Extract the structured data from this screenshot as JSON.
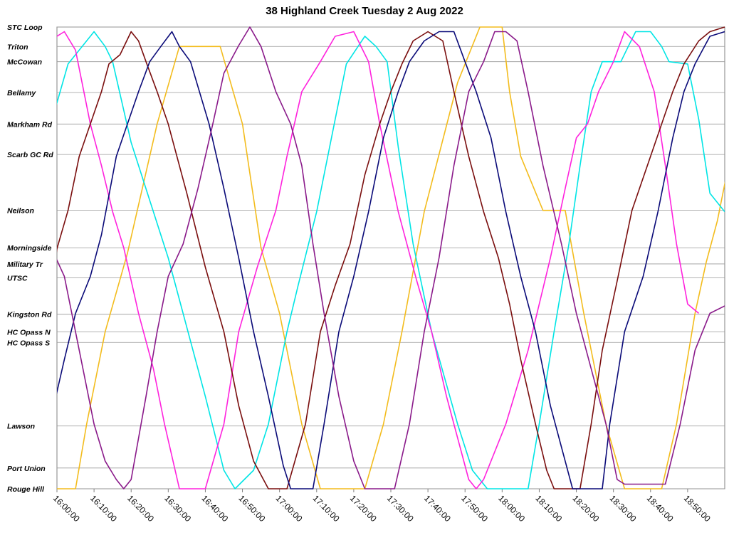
{
  "chart_data": {
    "type": "line",
    "title": "38 Highland Creek Tuesday 2 Aug 2022",
    "xlabel": "",
    "ylabel": "",
    "x_range": [
      "16:00:00",
      "19:00:00"
    ],
    "x_ticks": [
      "16:00:00",
      "16:10:00",
      "16:20:00",
      "16:30:00",
      "16:40:00",
      "16:50:00",
      "17:00:00",
      "17:10:00",
      "17:20:00",
      "17:30:00",
      "17:40:00",
      "17:50:00",
      "18:00:00",
      "18:10:00",
      "18:20:00",
      "18:30:00",
      "18:40:00",
      "18:50:00"
    ],
    "stops": [
      {
        "name": "STC Loop",
        "pos": 0
      },
      {
        "name": "Triton",
        "pos": 4.2
      },
      {
        "name": "McCowan",
        "pos": 7.5
      },
      {
        "name": "Bellamy",
        "pos": 14.2
      },
      {
        "name": "Markham Rd",
        "pos": 21.0
      },
      {
        "name": "Scarb GC Rd",
        "pos": 27.6
      },
      {
        "name": "Neilson",
        "pos": 39.7
      },
      {
        "name": "Morningside",
        "pos": 47.8
      },
      {
        "name": "Military Tr",
        "pos": 51.3
      },
      {
        "name": "UTSC",
        "pos": 54.3
      },
      {
        "name": "Kingston Rd",
        "pos": 62.2
      },
      {
        "name": "HC Opass N",
        "pos": 66.0
      },
      {
        "name": "HC Opass S",
        "pos": 68.3
      },
      {
        "name": "Lawson",
        "pos": 86.4
      },
      {
        "name": "Port Union",
        "pos": 95.5
      },
      {
        "name": "Rouge Hill",
        "pos": 100
      }
    ],
    "grid": true,
    "legend": "none",
    "series": [
      {
        "color": "#f3bc1d",
        "points": [
          [
            "15:58:00",
            100
          ],
          [
            "16:05:00",
            100
          ],
          [
            "16:08:00",
            86
          ],
          [
            "16:13:00",
            66
          ],
          [
            "16:19:00",
            49
          ],
          [
            "16:27:00",
            21
          ],
          [
            "16:33:00",
            4.2
          ],
          [
            "16:44:00",
            4.2
          ],
          [
            "16:50:00",
            21
          ],
          [
            "16:55:00",
            47.8
          ],
          [
            "17:00:00",
            62
          ],
          [
            "17:06:00",
            86
          ],
          [
            "17:11:00",
            100
          ],
          [
            "17:23:00",
            100
          ],
          [
            "17:28:00",
            86
          ],
          [
            "17:33:00",
            66
          ],
          [
            "17:39:00",
            40
          ],
          [
            "17:48:00",
            12
          ],
          [
            "17:54:00",
            0
          ],
          [
            "18:00:00",
            0
          ],
          [
            "18:02:00",
            14
          ],
          [
            "18:05:00",
            28
          ],
          [
            "18:11:00",
            39.7
          ],
          [
            "18:17:00",
            39.7
          ],
          [
            "18:22:00",
            62
          ],
          [
            "18:28:00",
            86
          ],
          [
            "18:33:00",
            100
          ],
          [
            "18:43:00",
            100
          ],
          [
            "18:47:00",
            86
          ],
          [
            "18:52:00",
            62
          ],
          [
            "18:55:00",
            51
          ],
          [
            "18:58:00",
            42
          ],
          [
            "19:01:00",
            30
          ]
        ]
      },
      {
        "color": "#00e5e5",
        "points": [
          [
            "15:58:00",
            22
          ],
          [
            "16:03:00",
            8
          ],
          [
            "16:10:00",
            1
          ],
          [
            "16:13:00",
            4.2
          ],
          [
            "16:15:00",
            7.5
          ],
          [
            "16:20:00",
            25
          ],
          [
            "16:30:00",
            50
          ],
          [
            "16:40:00",
            80
          ],
          [
            "16:45:00",
            96
          ],
          [
            "16:48:00",
            100
          ],
          [
            "16:53:00",
            96
          ],
          [
            "16:57:00",
            86
          ],
          [
            "17:02:00",
            66
          ],
          [
            "17:05:00",
            56
          ],
          [
            "17:10:00",
            40
          ],
          [
            "17:15:00",
            20
          ],
          [
            "17:18:00",
            8
          ],
          [
            "17:23:00",
            2
          ],
          [
            "17:26:00",
            4.2
          ],
          [
            "17:29:00",
            7.5
          ],
          [
            "17:32:00",
            26
          ],
          [
            "17:36:00",
            47
          ],
          [
            "17:41:00",
            66
          ],
          [
            "17:48:00",
            86
          ],
          [
            "17:52:00",
            96
          ],
          [
            "17:56:00",
            100
          ],
          [
            "18:07:00",
            100
          ],
          [
            "18:10:00",
            86
          ],
          [
            "18:14:00",
            66
          ],
          [
            "18:18:00",
            47
          ],
          [
            "18:21:00",
            30
          ],
          [
            "18:24:00",
            14
          ],
          [
            "18:27:00",
            7.5
          ],
          [
            "18:32:00",
            7.5
          ],
          [
            "18:34:00",
            4.2
          ],
          [
            "18:36:00",
            1
          ],
          [
            "18:40:00",
            1
          ],
          [
            "18:43:00",
            4.2
          ],
          [
            "18:45:00",
            7.5
          ],
          [
            "18:50:00",
            8
          ],
          [
            "18:53:00",
            20
          ],
          [
            "18:56:00",
            36
          ],
          [
            "19:00:00",
            40
          ]
        ]
      },
      {
        "color": "#ff22dd",
        "points": [
          [
            "15:58:00",
            5
          ],
          [
            "16:00:00",
            2
          ],
          [
            "16:02:00",
            1
          ],
          [
            "16:05:00",
            5
          ],
          [
            "16:09:00",
            21
          ],
          [
            "16:12:00",
            30
          ],
          [
            "16:15:00",
            40
          ],
          [
            "16:18:00",
            47.8
          ],
          [
            "16:22:00",
            62
          ],
          [
            "16:26:00",
            74
          ],
          [
            "16:29:00",
            86
          ],
          [
            "16:33:00",
            100
          ],
          [
            "16:40:00",
            100
          ],
          [
            "16:45:00",
            86
          ],
          [
            "16:49:00",
            66
          ],
          [
            "16:54:00",
            52
          ],
          [
            "16:59:00",
            39.7
          ],
          [
            "17:02:00",
            28
          ],
          [
            "17:06:00",
            14
          ],
          [
            "17:11:00",
            7.5
          ],
          [
            "17:15:00",
            2
          ],
          [
            "17:20:00",
            1
          ],
          [
            "17:24:00",
            7.5
          ],
          [
            "17:27:00",
            21
          ],
          [
            "17:32:00",
            40
          ],
          [
            "17:37:00",
            55
          ],
          [
            "17:41:00",
            66
          ],
          [
            "17:45:00",
            80
          ],
          [
            "17:51:00",
            98
          ],
          [
            "17:53:00",
            100
          ],
          [
            "17:55:00",
            98
          ],
          [
            "18:01:00",
            86
          ],
          [
            "18:07:00",
            70
          ],
          [
            "18:13:00",
            50
          ],
          [
            "18:17:00",
            35
          ],
          [
            "18:20:00",
            24
          ],
          [
            "18:23:00",
            21
          ],
          [
            "18:26:00",
            14
          ],
          [
            "18:30:00",
            7.5
          ],
          [
            "18:33:00",
            1
          ],
          [
            "18:37:00",
            4.2
          ],
          [
            "18:41:00",
            14
          ],
          [
            "18:44:00",
            30
          ],
          [
            "18:47:00",
            47
          ],
          [
            "18:50:00",
            60
          ],
          [
            "18:53:00",
            62
          ]
        ]
      },
      {
        "color": "#7a0e0e",
        "points": [
          [
            "15:58:00",
            60
          ],
          [
            "16:00:00",
            48
          ],
          [
            "16:03:00",
            39.7
          ],
          [
            "16:06:00",
            28
          ],
          [
            "16:09:00",
            21
          ],
          [
            "16:12:00",
            14
          ],
          [
            "16:14:00",
            8
          ],
          [
            "16:17:00",
            6
          ],
          [
            "16:20:00",
            1
          ],
          [
            "16:22:00",
            3
          ],
          [
            "16:24:00",
            7.5
          ],
          [
            "16:27:00",
            14
          ],
          [
            "16:30:00",
            21
          ],
          [
            "16:35:00",
            36
          ],
          [
            "16:40:00",
            52
          ],
          [
            "16:45:00",
            66
          ],
          [
            "16:49:00",
            82
          ],
          [
            "16:53:00",
            94
          ],
          [
            "16:57:00",
            100
          ],
          [
            "17:02:00",
            100
          ],
          [
            "17:07:00",
            86
          ],
          [
            "17:11:00",
            66
          ],
          [
            "17:15:00",
            56
          ],
          [
            "17:19:00",
            47
          ],
          [
            "17:23:00",
            32
          ],
          [
            "17:27:00",
            21
          ],
          [
            "17:30:00",
            14
          ],
          [
            "17:33:00",
            8
          ],
          [
            "17:36:00",
            3
          ],
          [
            "17:40:00",
            1
          ],
          [
            "17:44:00",
            3
          ],
          [
            "17:47:00",
            14
          ],
          [
            "17:51:00",
            28
          ],
          [
            "17:55:00",
            40
          ],
          [
            "17:59:00",
            50
          ],
          [
            "18:02:00",
            60
          ],
          [
            "18:05:00",
            72
          ],
          [
            "18:09:00",
            86
          ],
          [
            "18:12:00",
            96
          ],
          [
            "18:14:00",
            100
          ],
          [
            "18:21:00",
            100
          ],
          [
            "18:24:00",
            86
          ],
          [
            "18:27:00",
            70
          ],
          [
            "18:31:00",
            55
          ],
          [
            "18:35:00",
            39.7
          ],
          [
            "18:40:00",
            28
          ],
          [
            "18:43:00",
            21
          ],
          [
            "18:46:00",
            14
          ],
          [
            "18:49:00",
            8
          ],
          [
            "18:53:00",
            3
          ],
          [
            "18:56:00",
            1
          ],
          [
            "19:00:00",
            0
          ]
        ]
      },
      {
        "color": "#0a0a78",
        "points": [
          [
            "15:58:00",
            86
          ],
          [
            "16:02:00",
            72
          ],
          [
            "16:05:00",
            62
          ],
          [
            "16:09:00",
            54
          ],
          [
            "16:12:00",
            45
          ],
          [
            "16:16:00",
            28
          ],
          [
            "16:19:00",
            21
          ],
          [
            "16:22:00",
            14
          ],
          [
            "16:25:00",
            7.5
          ],
          [
            "16:28:00",
            4.2
          ],
          [
            "16:31:00",
            1
          ],
          [
            "16:33:00",
            4.2
          ],
          [
            "16:36:00",
            7.5
          ],
          [
            "16:41:00",
            21
          ],
          [
            "16:45:00",
            35
          ],
          [
            "16:49:00",
            50
          ],
          [
            "16:53:00",
            66
          ],
          [
            "16:57:00",
            80
          ],
          [
            "17:01:00",
            95
          ],
          [
            "17:03:00",
            100
          ],
          [
            "17:09:00",
            100
          ],
          [
            "17:12:00",
            86
          ],
          [
            "17:16:00",
            66
          ],
          [
            "17:20:00",
            54
          ],
          [
            "17:24:00",
            40
          ],
          [
            "17:28:00",
            24
          ],
          [
            "17:32:00",
            14
          ],
          [
            "17:35:00",
            7.5
          ],
          [
            "17:39:00",
            3
          ],
          [
            "17:43:00",
            1
          ],
          [
            "17:47:00",
            1
          ],
          [
            "17:50:00",
            7.5
          ],
          [
            "17:53:00",
            14
          ],
          [
            "17:57:00",
            24
          ],
          [
            "18:01:00",
            40
          ],
          [
            "18:05:00",
            54
          ],
          [
            "18:09:00",
            66
          ],
          [
            "18:13:00",
            82
          ],
          [
            "18:17:00",
            94
          ],
          [
            "18:19:00",
            100
          ],
          [
            "18:27:00",
            100
          ],
          [
            "18:29:00",
            86
          ],
          [
            "18:33:00",
            66
          ],
          [
            "18:38:00",
            54
          ],
          [
            "18:42:00",
            40
          ],
          [
            "18:46:00",
            24
          ],
          [
            "18:49:00",
            14
          ],
          [
            "18:52:00",
            8
          ],
          [
            "18:56:00",
            2
          ],
          [
            "19:00:00",
            1
          ]
        ]
      },
      {
        "color": "#8a1a8a",
        "points": [
          [
            "15:58:00",
            47
          ],
          [
            "16:02:00",
            54
          ],
          [
            "16:06:00",
            70
          ],
          [
            "16:10:00",
            86
          ],
          [
            "16:13:00",
            94
          ],
          [
            "16:16:00",
            98
          ],
          [
            "16:18:00",
            100
          ],
          [
            "16:20:00",
            98
          ],
          [
            "16:24:00",
            80
          ],
          [
            "16:27:00",
            66
          ],
          [
            "16:30:00",
            54
          ],
          [
            "16:34:00",
            47
          ],
          [
            "16:38:00",
            35
          ],
          [
            "16:42:00",
            21
          ],
          [
            "16:45:00",
            10
          ],
          [
            "16:49:00",
            4
          ],
          [
            "16:52:00",
            0
          ],
          [
            "16:55:00",
            4.2
          ],
          [
            "16:59:00",
            14
          ],
          [
            "17:03:00",
            21
          ],
          [
            "17:06:00",
            30
          ],
          [
            "17:09:00",
            47
          ],
          [
            "17:12:00",
            62
          ],
          [
            "17:16:00",
            80
          ],
          [
            "17:20:00",
            94
          ],
          [
            "17:23:00",
            100
          ],
          [
            "17:31:00",
            100
          ],
          [
            "17:35:00",
            86
          ],
          [
            "17:39:00",
            66
          ],
          [
            "17:43:00",
            50
          ],
          [
            "17:47:00",
            30
          ],
          [
            "17:51:00",
            14
          ],
          [
            "17:55:00",
            7.5
          ],
          [
            "17:58:00",
            1
          ],
          [
            "18:01:00",
            1
          ],
          [
            "18:04:00",
            3
          ],
          [
            "18:07:00",
            14
          ],
          [
            "18:11:00",
            30
          ],
          [
            "18:16:00",
            47
          ],
          [
            "18:20:00",
            62
          ],
          [
            "18:24:00",
            74
          ],
          [
            "18:28:00",
            86
          ],
          [
            "18:31:00",
            98
          ],
          [
            "18:33:00",
            99
          ],
          [
            "18:44:00",
            99
          ],
          [
            "18:48:00",
            86
          ],
          [
            "18:52:00",
            70
          ],
          [
            "18:56:00",
            62
          ],
          [
            "19:01:00",
            60
          ]
        ]
      }
    ]
  }
}
